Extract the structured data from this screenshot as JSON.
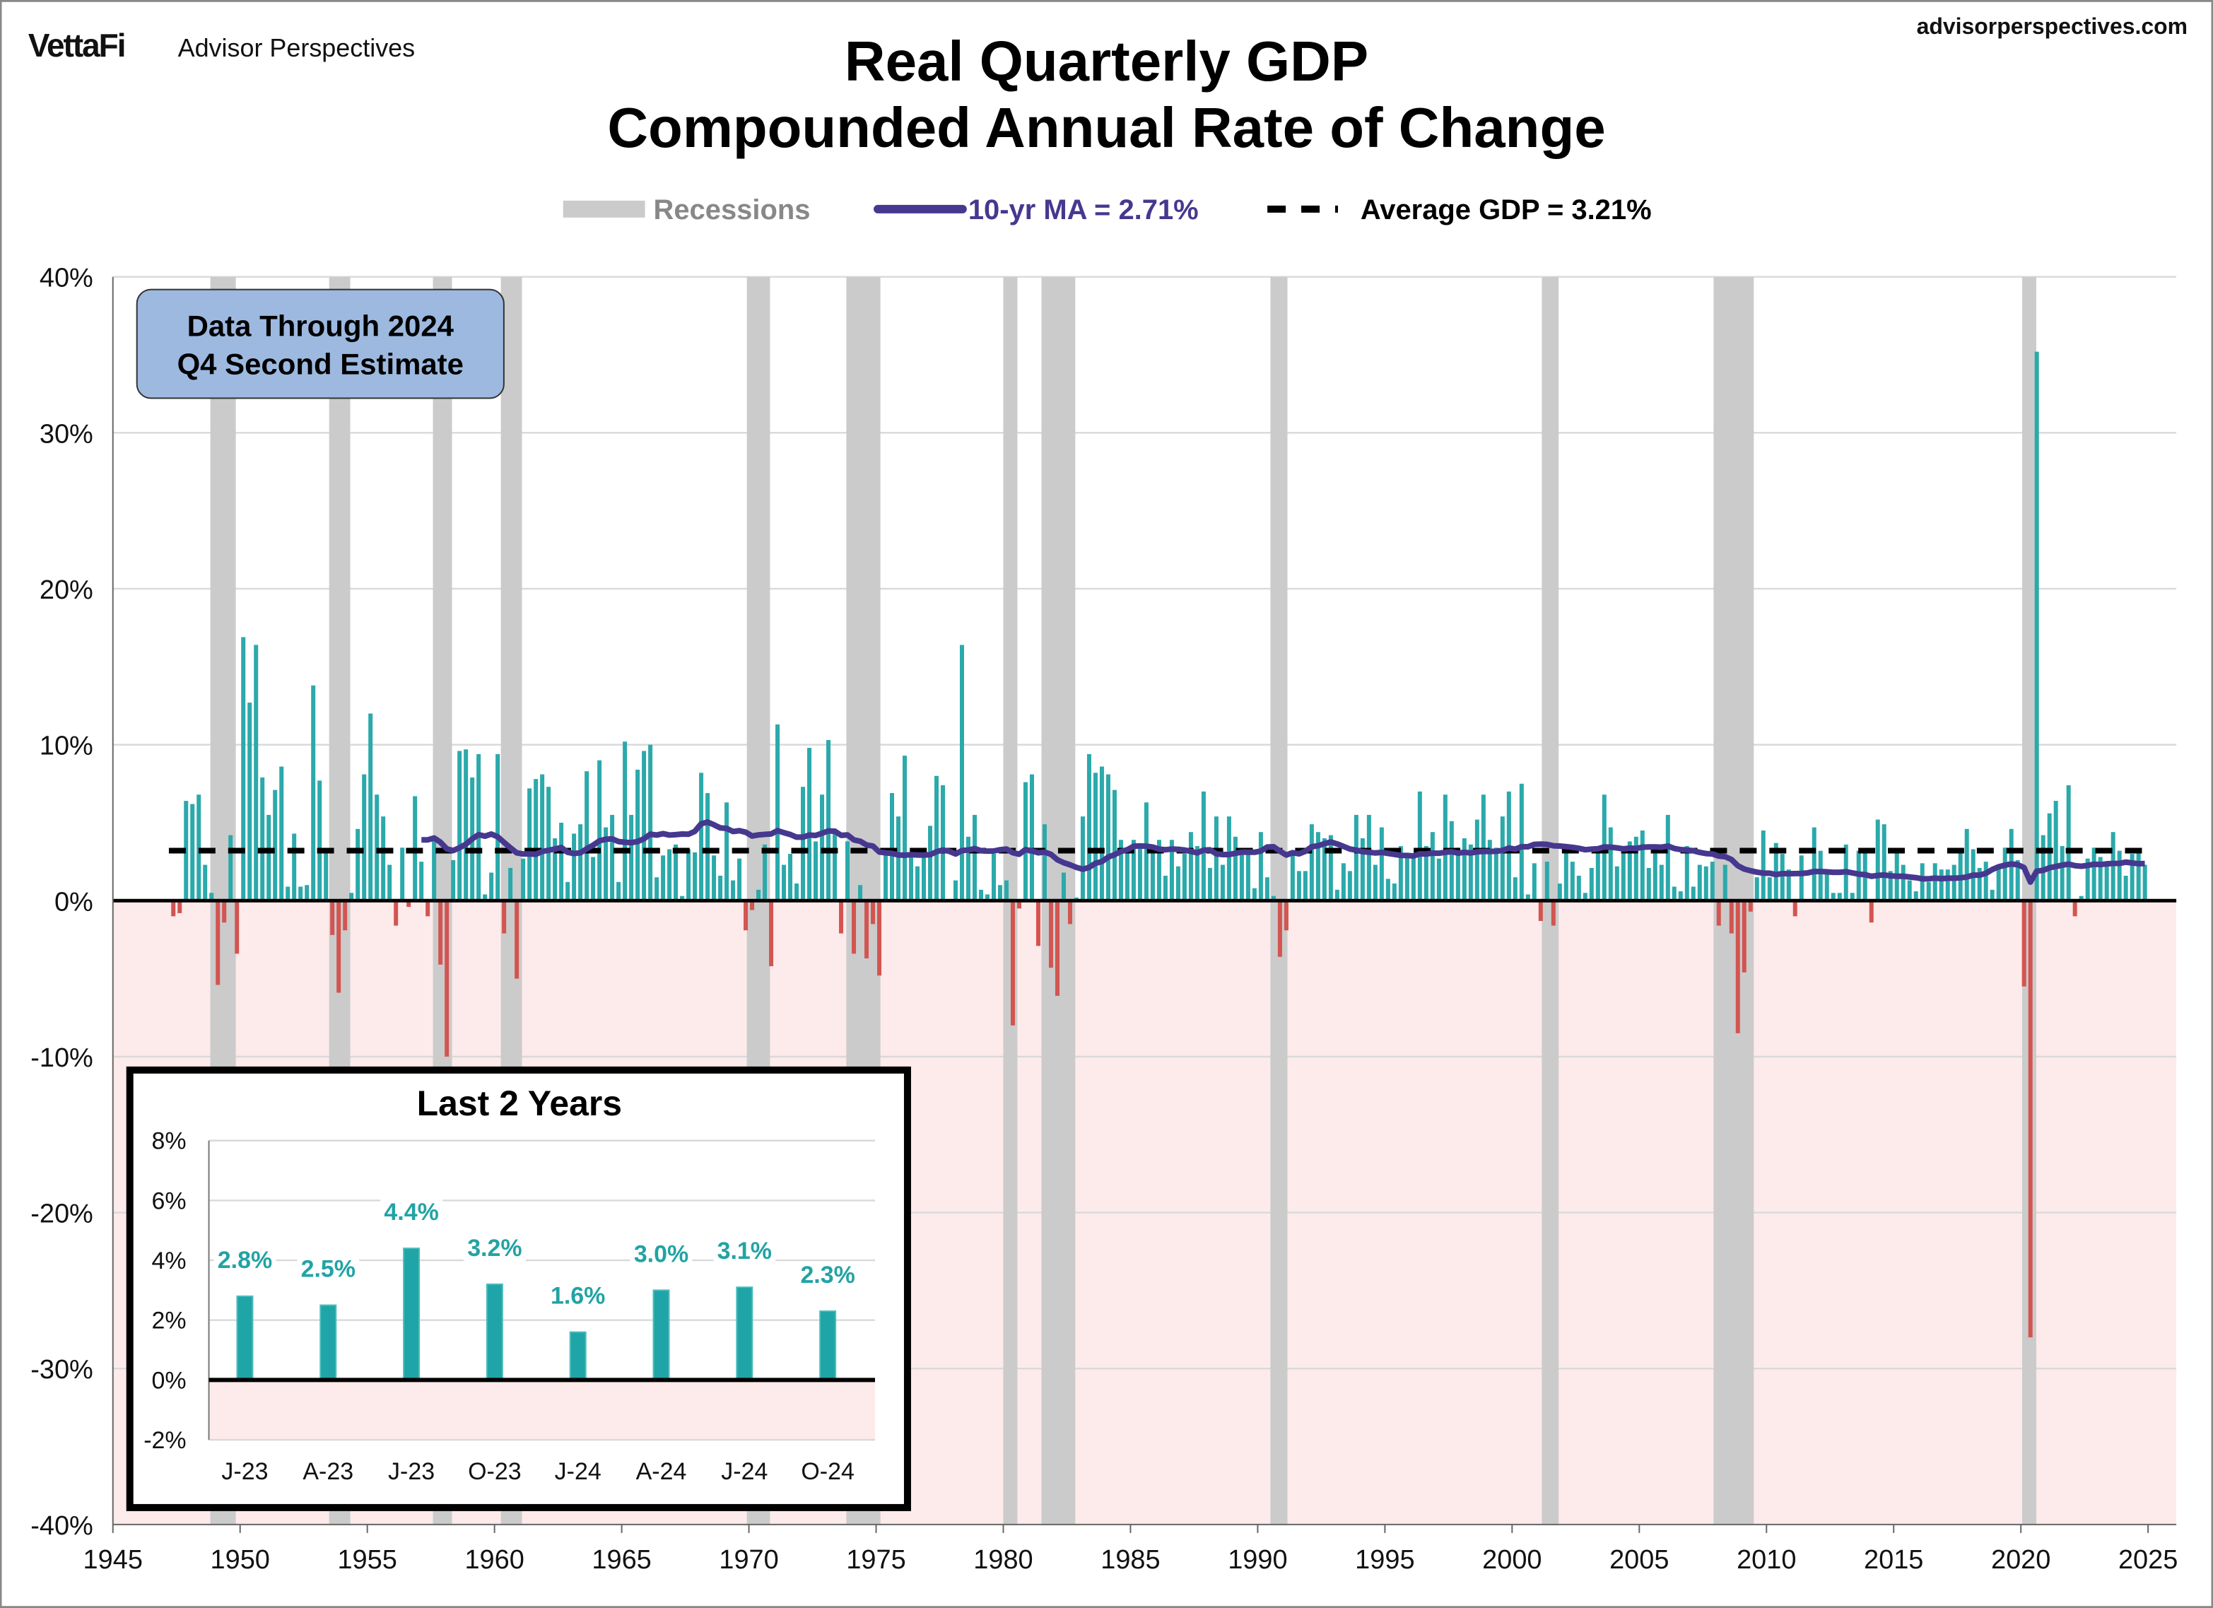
{
  "header": {
    "brand_logo": "VettaFi",
    "brand_name": "Advisor Perspectives",
    "website": "advisorperspectives.com"
  },
  "chart_data": [
    {
      "type": "bar",
      "title": "Real Quarterly GDP",
      "subtitle": "Compounded Annual Rate of Change",
      "annotation": [
        "Data Through 2024",
        "Q4 Second Estimate"
      ],
      "legend": {
        "placement": "top",
        "recessions": "Recessions",
        "ma": "10-yr MA = 2.71%",
        "average": "Average GDP = 3.21%"
      },
      "average_value": 3.21,
      "ma_latest": 2.71,
      "xlim": [
        1945,
        2025
      ],
      "ylim": [
        -40,
        40
      ],
      "x_ticks": [
        "1945",
        "1950",
        "1955",
        "1960",
        "1965",
        "1970",
        "1975",
        "1980",
        "1985",
        "1990",
        "1995",
        "2000",
        "2005",
        "2010",
        "2015",
        "2020",
        "2025"
      ],
      "y_ticks": [
        "40%",
        "30%",
        "20%",
        "10%",
        "0%",
        "-10%",
        "-20%",
        "-30%",
        "-40%"
      ],
      "grid": true,
      "colors": {
        "positive": "#2ba9ab",
        "negative": "#d35450",
        "recession": "#cbcbcb",
        "ma": "#46388f",
        "average": "#000000",
        "negative_zone": "#fdeaea",
        "annotation_box": "#9db9e0"
      },
      "recessions": [
        [
          1948.83,
          1949.83
        ],
        [
          1953.5,
          1954.33
        ],
        [
          1957.58,
          1958.33
        ],
        [
          1960.25,
          1961.08
        ],
        [
          1969.92,
          1970.83
        ],
        [
          1973.83,
          1975.17
        ],
        [
          1980.0,
          1980.5
        ],
        [
          1981.5,
          1982.83
        ],
        [
          1990.5,
          1991.17
        ],
        [
          2001.17,
          2001.83
        ],
        [
          2007.92,
          2009.5
        ],
        [
          2020.05,
          2020.55
        ]
      ],
      "start_quarter": "1947 Q2",
      "quarterly_growth": [
        -1.0,
        -0.8,
        6.4,
        6.2,
        6.8,
        2.3,
        0.5,
        -5.4,
        -1.4,
        4.2,
        -3.4,
        16.9,
        12.7,
        16.4,
        7.9,
        5.5,
        7.1,
        8.6,
        0.9,
        4.3,
        0.9,
        1.0,
        13.8,
        7.7,
        3.1,
        -2.2,
        -5.9,
        -1.9,
        0.5,
        4.6,
        8.1,
        12.0,
        6.8,
        5.4,
        2.3,
        -1.6,
        3.4,
        -0.4,
        6.7,
        2.5,
        -1.0,
        3.9,
        -4.1,
        -10.0,
        2.6,
        9.6,
        9.7,
        7.9,
        9.4,
        0.4,
        1.8,
        9.4,
        -2.1,
        2.1,
        -5.0,
        2.7,
        7.2,
        7.8,
        8.1,
        7.3,
        4.0,
        5.0,
        1.2,
        4.3,
        4.9,
        8.3,
        2.8,
        9.0,
        4.7,
        5.5,
        1.2,
        10.2,
        5.5,
        8.4,
        9.6,
        10.0,
        1.5,
        2.9,
        3.3,
        3.6,
        0.3,
        3.3,
        3.1,
        8.2,
        6.9,
        2.9,
        1.6,
        6.3,
        1.3,
        2.7,
        -1.9,
        -0.6,
        0.7,
        3.6,
        -4.2,
        11.3,
        2.3,
        3.0,
        1.1,
        7.3,
        9.8,
        3.8,
        6.8,
        10.3,
        4.4,
        -2.1,
        3.8,
        -3.4,
        1.0,
        -3.7,
        -1.5,
        -4.8,
        3.1,
        6.9,
        5.4,
        9.3,
        3.0,
        2.2,
        2.9,
        4.8,
        8.0,
        7.4,
        0.0,
        1.3,
        16.4,
        4.1,
        5.5,
        0.7,
        0.4,
        3.0,
        1.0,
        1.3,
        -8.0,
        -0.5,
        7.6,
        8.1,
        -2.9,
        4.9,
        -4.3,
        -6.1,
        1.8,
        -1.5,
        0.2,
        5.4,
        9.4,
        8.2,
        8.6,
        8.1,
        7.1,
        3.9,
        3.3,
        3.9,
        3.6,
        6.3,
        3.1,
        3.9,
        1.6,
        3.9,
        2.2,
        3.0,
        4.4,
        3.5,
        7.0,
        2.1,
        5.4,
        2.3,
        5.4,
        4.1,
        3.1,
        3.0,
        0.8,
        4.4,
        1.5,
        0.3,
        -3.6,
        -1.9,
        3.1,
        1.9,
        1.9,
        4.9,
        4.4,
        4.0,
        4.2,
        0.7,
        2.4,
        1.9,
        5.5,
        4.0,
        5.5,
        2.3,
        4.7,
        1.4,
        1.1,
        3.5,
        3.0,
        2.8,
        7.0,
        3.5,
        4.4,
        2.7,
        6.8,
        5.1,
        3.4,
        4.0,
        3.6,
        5.2,
        6.8,
        3.9,
        3.4,
        5.4,
        7.0,
        1.5,
        7.5,
        0.4,
        2.4,
        -1.3,
        2.5,
        -1.6,
        1.1,
        3.4,
        2.5,
        1.6,
        0.5,
        2.1,
        3.5,
        6.8,
        4.7,
        2.2,
        3.1,
        3.8,
        4.1,
        4.5,
        2.1,
        3.4,
        2.3,
        5.5,
        0.9,
        0.6,
        3.5,
        0.9,
        2.3,
        2.2,
        2.5,
        -1.6,
        2.3,
        -2.1,
        -8.5,
        -4.6,
        -0.7,
        1.5,
        4.5,
        1.5,
        3.7,
        3.0,
        2.0,
        -1.0,
        2.9,
        -0.1,
        4.7,
        3.2,
        1.7,
        0.5,
        0.5,
        3.6,
        0.5,
        3.2,
        3.2,
        -1.4,
        5.2,
        4.9,
        1.9,
        3.3,
        2.3,
        1.3,
        0.6,
        2.4,
        1.2,
        2.4,
        2.0,
        2.0,
        2.3,
        3.2,
        4.6,
        3.3,
        2.1,
        2.5,
        0.7,
        2.2,
        3.4,
        4.6,
        2.6,
        -5.5,
        -28.0,
        35.2,
        4.2,
        5.6,
        6.4,
        3.5,
        7.4,
        -1.0,
        0.3,
        2.7,
        3.4,
        2.8,
        2.5,
        4.4,
        3.2,
        1.6,
        3.0,
        3.1,
        2.3
      ]
    },
    {
      "type": "bar",
      "title": "Last 2 Years",
      "categories": [
        "J-23",
        "A-23",
        "J-23",
        "O-23",
        "J-24",
        "A-24",
        "J-24",
        "O-24"
      ],
      "values": [
        2.8,
        2.5,
        4.4,
        3.2,
        1.6,
        3.0,
        3.1,
        2.3
      ],
      "data_labels": [
        "2.8%",
        "2.5%",
        "4.4%",
        "3.2%",
        "1.6%",
        "3.0%",
        "3.1%",
        "2.3%"
      ],
      "ylim": [
        -2,
        8
      ],
      "y_ticks": [
        "8%",
        "6%",
        "4%",
        "2%",
        "0%",
        "-2%"
      ],
      "grid": true
    }
  ]
}
